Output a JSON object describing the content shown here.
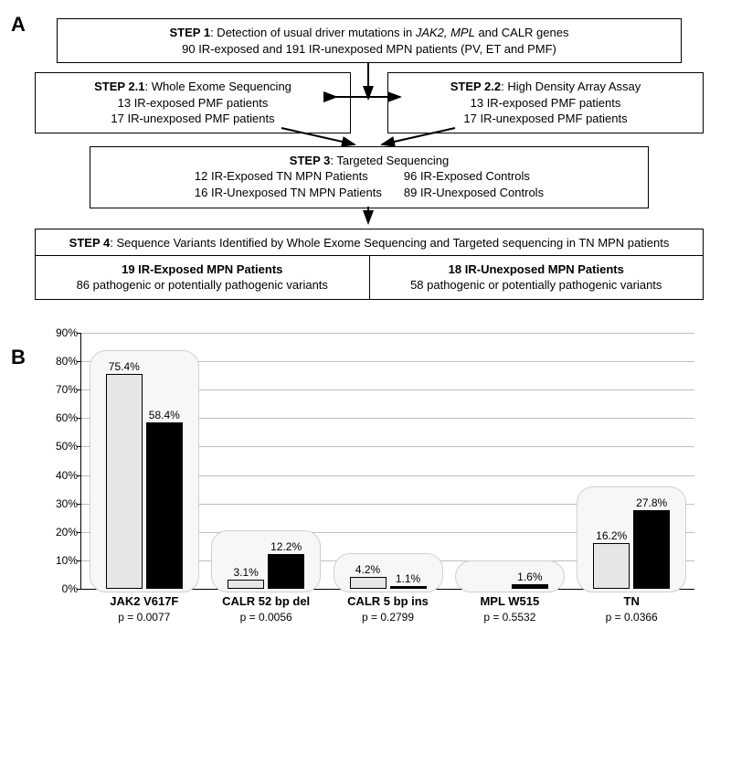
{
  "panelA": {
    "label": "A",
    "step1": {
      "title": "STEP 1",
      "title_rest": ": Detection of usual driver mutations in ",
      "title_italic": "JAK2, MPL",
      "title_rest2": " and CALR genes",
      "line2": "90 IR-exposed and 191 IR-unexposed MPN patients (PV, ET and PMF)"
    },
    "step21": {
      "title": "STEP 2.1",
      "title_rest": ": Whole Exome Sequencing",
      "l2": "13 IR-exposed PMF patients",
      "l3": "17 IR-unexposed PMF patients"
    },
    "step22": {
      "title": "STEP 2.2",
      "title_rest": ": High Density Array Assay",
      "l2": "13 IR-exposed PMF patients",
      "l3": "17 IR-unexposed PMF patients"
    },
    "step3": {
      "title": "STEP 3",
      "title_rest": ": Targeted Sequencing",
      "r1c1": "12 IR-Exposed TN MPN Patients",
      "r1c2": "96 IR-Exposed Controls",
      "r2c1": "16 IR-Unexposed TN MPN Patients",
      "r2c2": "89 IR-Unexposed Controls"
    },
    "step4": {
      "title": "STEP 4",
      "title_rest": ": Sequence Variants Identified by Whole Exome Sequencing and Targeted sequencing in TN MPN patients",
      "left_top": "19 IR-Exposed MPN Patients",
      "left_bot": "86 pathogenic or potentially pathogenic variants",
      "right_top": "18 IR-Unexposed MPN Patients",
      "right_bot": "58 pathogenic or potentially pathogenic variants"
    }
  },
  "panelB": {
    "label": "B",
    "chart": {
      "type": "bar",
      "ymax": 90,
      "ytick_step": 10,
      "light_color": "#e6e6e6",
      "dark_color": "#000000",
      "grid_color": "#bfbfbf",
      "groups": [
        {
          "name": "JAK2 V617F",
          "p": "p = 0.0077",
          "v_light": 75.4,
          "v_dark": 58.4,
          "label_light": "75.4%",
          "label_dark": "58.4%"
        },
        {
          "name": "CALR 52 bp del",
          "p": "p = 0.0056",
          "v_light": 3.1,
          "v_dark": 12.2,
          "label_light": "3.1%",
          "label_dark": "12.2%"
        },
        {
          "name": "CALR 5 bp ins",
          "p": "p = 0.2799",
          "v_light": 4.2,
          "v_dark": 1.1,
          "label_light": "4.2%",
          "label_dark": "1.1%"
        },
        {
          "name": "MPL W515",
          "p": "p = 0.5532",
          "v_light": 0,
          "v_dark": 1.6,
          "label_light": "",
          "label_dark": "1.6%"
        },
        {
          "name": "TN",
          "p": "p = 0.0366",
          "v_light": 16.2,
          "v_dark": 27.8,
          "label_light": "16.2%",
          "label_dark": "27.8%"
        }
      ]
    }
  }
}
